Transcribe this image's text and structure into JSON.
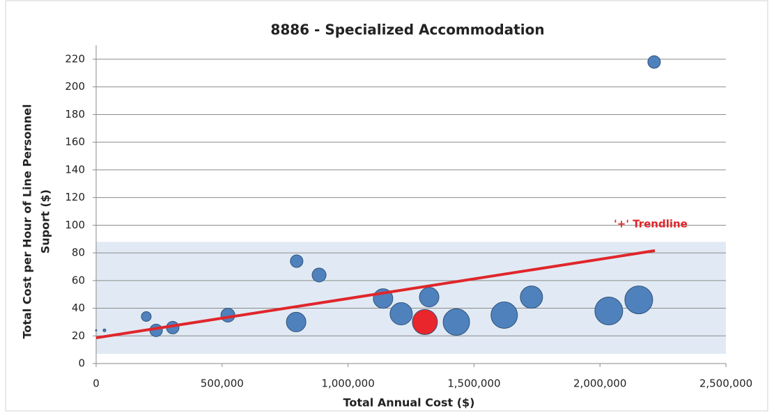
{
  "chart_data": {
    "type": "bubble",
    "title": "8886 - Specialized Accommodation",
    "x_label": "Total Annual Cost ($)",
    "y_label": [
      "Total Cost per Hour of Line Personnel",
      "Suport ($)"
    ],
    "xlim": [
      0,
      2500000
    ],
    "xticks": [
      0,
      {
        "value": 500000,
        "label": "500,000"
      },
      {
        "value": 1000000,
        "label": "1,000,000"
      },
      {
        "value": 1500000,
        "label": "1,500,000"
      },
      {
        "value": 2000000,
        "label": "2,000,000"
      },
      {
        "value": 2500000,
        "label": "2,500,000"
      }
    ],
    "ylim": [
      0,
      220
    ],
    "yticks": [
      0,
      20,
      40,
      60,
      80,
      100,
      120,
      140,
      160,
      180,
      200,
      220
    ],
    "grid": true,
    "band": [
      7,
      88
    ],
    "band_color": "#dce6f2",
    "series": [
      {
        "color": "#4f81bd",
        "x": [
          0,
          33000,
          199000,
          238000,
          304000,
          523000,
          796000,
          794000,
          885000,
          1139000,
          1211000,
          1322000,
          1430000,
          1620000,
          1728000,
          2035000,
          2154000,
          2215000
        ],
        "values": [
          24,
          24,
          34,
          24,
          26,
          35,
          74,
          30,
          64,
          47,
          36,
          48,
          30,
          35,
          48,
          38,
          46,
          218
        ],
        "sizes": [
          1,
          4,
          49,
          81,
          81,
          100,
          81,
          196,
          100,
          196,
          256,
          196,
          361,
          361,
          256,
          400,
          400,
          81
        ]
      },
      {
        "color": "#e8262b",
        "x": [
          1305000
        ],
        "values": [
          30
        ],
        "sizes": [
          324
        ]
      }
    ],
    "trendline": {
      "x": [
        0,
        2218000
      ],
      "values": [
        18.6,
        81.6
      ],
      "color": "#e0262b",
      "label": "'+' Trendline"
    }
  }
}
